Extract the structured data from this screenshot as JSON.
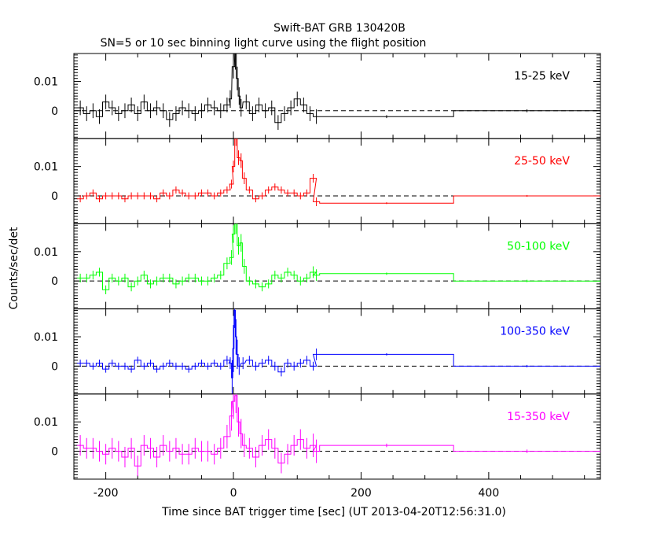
{
  "title": "Swift-BAT GRB 130420B",
  "subtitle": "SN=5 or 10 sec binning light curve using the flight position",
  "chart_data": {
    "type": "line",
    "xlabel": "Time since BAT trigger time [sec] (UT 2013-04-20T12:56:31.0)",
    "ylabel": "Counts/sec/det",
    "xlim": [
      -250,
      575
    ],
    "x_ticks": [
      -200,
      0,
      200,
      400
    ],
    "x_tick_labels": [
      "-200",
      "0",
      "200",
      "400"
    ],
    "ylim": [
      -0.0095,
      0.0195
    ],
    "y_ticks": [
      0,
      0.01
    ],
    "y_tick_labels": [
      "0",
      "0.01"
    ],
    "zero_line": "dashed",
    "panels": [
      {
        "name": "15-25 keV",
        "color": "#000000",
        "x": [
          -240,
          -230,
          -220,
          -210,
          -200,
          -190,
          -180,
          -170,
          -160,
          -150,
          -140,
          -130,
          -120,
          -110,
          -100,
          -90,
          -80,
          -70,
          -60,
          -50,
          -40,
          -30,
          -20,
          -10,
          -5,
          0,
          3,
          6,
          9,
          12,
          20,
          30,
          40,
          50,
          60,
          70,
          80,
          90,
          100,
          110,
          120,
          130,
          240,
          460
        ],
        "y": [
          0.001,
          -0.001,
          0,
          -0.002,
          0.003,
          0.001,
          -0.001,
          0,
          0.002,
          -0.001,
          0.003,
          0,
          0.001,
          0,
          -0.003,
          -0.001,
          0.001,
          0,
          -0.001,
          0,
          0.002,
          0.001,
          0,
          0.002,
          0.004,
          0.015,
          0.02,
          0.011,
          0.005,
          0.001,
          0.003,
          -0.001,
          0.002,
          0,
          0.001,
          -0.004,
          -0.001,
          0.001,
          0.004,
          0.002,
          -0.001,
          -0.002,
          -0.002,
          0
        ],
        "xerr": [
          5,
          5,
          5,
          5,
          5,
          5,
          5,
          5,
          5,
          5,
          5,
          5,
          5,
          5,
          5,
          5,
          5,
          5,
          5,
          5,
          5,
          5,
          5,
          5,
          2,
          2,
          1.5,
          1.5,
          1.5,
          2,
          5,
          5,
          5,
          5,
          5,
          5,
          5,
          5,
          5,
          5,
          5,
          5,
          105,
          115
        ],
        "yerr": [
          0.0025,
          0.0025,
          0.0025,
          0.0025,
          0.0025,
          0.0025,
          0.0025,
          0.0025,
          0.0025,
          0.0025,
          0.0025,
          0.0025,
          0.0025,
          0.0025,
          0.0025,
          0.0025,
          0.0025,
          0.0025,
          0.0025,
          0.0025,
          0.0025,
          0.0025,
          0.0025,
          0.0025,
          0.003,
          0.004,
          0.006,
          0.004,
          0.003,
          0.003,
          0.0025,
          0.0025,
          0.0025,
          0.0025,
          0.0025,
          0.0025,
          0.0025,
          0.0025,
          0.0025,
          0.0025,
          0.0025,
          0.0025,
          0.0005,
          0.0005
        ]
      },
      {
        "name": "25-50 keV",
        "color": "#ff0000",
        "x": [
          -240,
          -230,
          -220,
          -210,
          -200,
          -190,
          -180,
          -170,
          -160,
          -150,
          -140,
          -130,
          -120,
          -110,
          -100,
          -90,
          -80,
          -70,
          -60,
          -50,
          -40,
          -30,
          -20,
          -10,
          -3,
          0,
          4,
          8,
          12,
          17,
          25,
          35,
          45,
          55,
          65,
          75,
          85,
          95,
          105,
          115,
          125,
          130,
          240,
          460
        ],
        "y": [
          -0.001,
          0,
          0.001,
          -0.001,
          0,
          0,
          0,
          -0.001,
          0,
          0,
          0,
          0,
          -0.001,
          0.001,
          0,
          0.002,
          0.001,
          0,
          0,
          0.001,
          0.001,
          0,
          0.001,
          0.002,
          0.004,
          0.01,
          0.02,
          0.013,
          0.012,
          0.006,
          0.002,
          -0.001,
          0,
          0.002,
          0.003,
          0.002,
          0.001,
          0.001,
          0,
          0.001,
          0.006,
          -0.002,
          -0.0025,
          0
        ],
        "xerr": [
          5,
          5,
          5,
          5,
          5,
          5,
          5,
          5,
          5,
          5,
          5,
          5,
          5,
          5,
          5,
          5,
          5,
          5,
          5,
          5,
          5,
          5,
          5,
          5,
          3,
          2,
          2,
          2,
          2,
          3,
          5,
          5,
          5,
          5,
          5,
          5,
          5,
          5,
          5,
          5,
          5,
          5,
          105,
          115
        ],
        "yerr": [
          0.0012,
          0.0012,
          0.0012,
          0.0012,
          0.0012,
          0.0012,
          0.0012,
          0.0012,
          0.0012,
          0.0012,
          0.0012,
          0.0012,
          0.0012,
          0.0012,
          0.0012,
          0.0012,
          0.0012,
          0.0012,
          0.0012,
          0.0012,
          0.0012,
          0.0012,
          0.0012,
          0.0012,
          0.0015,
          0.002,
          0.003,
          0.0025,
          0.0025,
          0.002,
          0.0012,
          0.0012,
          0.0012,
          0.0012,
          0.0012,
          0.0012,
          0.0012,
          0.0012,
          0.0012,
          0.0012,
          0.0015,
          0.0015,
          0.0003,
          0.0003
        ]
      },
      {
        "name": "50-100 keV",
        "color": "#00ff00",
        "x": [
          -240,
          -230,
          -220,
          -210,
          -200,
          -190,
          -180,
          -170,
          -160,
          -150,
          -140,
          -130,
          -120,
          -110,
          -100,
          -90,
          -80,
          -70,
          -60,
          -50,
          -40,
          -30,
          -20,
          -10,
          -3,
          0,
          4,
          8,
          12,
          17,
          25,
          35,
          45,
          55,
          65,
          75,
          85,
          95,
          105,
          115,
          125,
          130,
          240,
          460
        ],
        "y": [
          0.001,
          0.001,
          0.002,
          0.003,
          -0.003,
          0.001,
          0,
          0.001,
          -0.002,
          0,
          0.002,
          -0.001,
          0,
          0.001,
          0.001,
          -0.001,
          0,
          0.001,
          0.001,
          0,
          0,
          0.001,
          0.002,
          0.006,
          0.008,
          0.016,
          0.02,
          0.012,
          0.013,
          0.005,
          0,
          -0.001,
          -0.002,
          -0.001,
          0.002,
          0.001,
          0.003,
          0.002,
          0,
          0.001,
          0.003,
          0.002,
          0.0025,
          0
        ],
        "xerr": [
          5,
          5,
          5,
          5,
          5,
          5,
          5,
          5,
          5,
          5,
          5,
          5,
          5,
          5,
          5,
          5,
          5,
          5,
          5,
          5,
          5,
          5,
          5,
          5,
          3,
          2,
          2,
          2,
          2,
          3,
          5,
          5,
          5,
          5,
          5,
          5,
          5,
          5,
          5,
          5,
          5,
          5,
          105,
          115
        ],
        "yerr": [
          0.0015,
          0.0015,
          0.0015,
          0.0015,
          0.0015,
          0.0015,
          0.0015,
          0.0015,
          0.0015,
          0.0015,
          0.0015,
          0.0015,
          0.0015,
          0.0015,
          0.0015,
          0.0015,
          0.0015,
          0.0015,
          0.0015,
          0.0015,
          0.0015,
          0.0015,
          0.0015,
          0.002,
          0.0025,
          0.003,
          0.004,
          0.003,
          0.003,
          0.0025,
          0.0015,
          0.0015,
          0.0015,
          0.0015,
          0.0015,
          0.0015,
          0.0015,
          0.0015,
          0.0015,
          0.0015,
          0.002,
          0.002,
          0.0004,
          0.0004
        ]
      },
      {
        "name": "100-350 keV",
        "color": "#0000ff",
        "x": [
          -240,
          -230,
          -220,
          -210,
          -200,
          -190,
          -180,
          -170,
          -160,
          -150,
          -140,
          -130,
          -120,
          -110,
          -100,
          -90,
          -80,
          -70,
          -60,
          -50,
          -40,
          -30,
          -20,
          -10,
          -5,
          -2,
          0,
          2,
          4,
          6,
          9,
          15,
          25,
          35,
          45,
          55,
          65,
          75,
          85,
          95,
          105,
          115,
          125,
          130,
          240,
          460
        ],
        "y": [
          0.001,
          0.001,
          0,
          0.001,
          -0.001,
          0.001,
          0,
          0,
          -0.001,
          0.002,
          0,
          0.001,
          -0.001,
          0,
          0.001,
          0,
          0,
          -0.001,
          0,
          0.001,
          0,
          0.001,
          0,
          0.002,
          0.001,
          -0.004,
          0.006,
          0.019,
          0.01,
          0.004,
          0,
          0.001,
          0.002,
          0,
          0.001,
          0.002,
          0,
          -0.002,
          0.001,
          0,
          0.001,
          0.002,
          0,
          0.004,
          0.004,
          0
        ],
        "xerr": [
          5,
          5,
          5,
          5,
          5,
          5,
          5,
          5,
          5,
          5,
          5,
          5,
          5,
          5,
          5,
          5,
          5,
          5,
          5,
          5,
          5,
          5,
          5,
          5,
          2,
          1,
          1,
          1,
          1,
          1.5,
          2,
          3,
          5,
          5,
          5,
          5,
          5,
          5,
          5,
          5,
          5,
          5,
          5,
          5,
          105,
          115
        ],
        "yerr": [
          0.0012,
          0.0012,
          0.0012,
          0.0012,
          0.0012,
          0.0012,
          0.0012,
          0.0012,
          0.0012,
          0.0012,
          0.0012,
          0.0012,
          0.0012,
          0.0012,
          0.0012,
          0.0012,
          0.0012,
          0.0012,
          0.0012,
          0.0012,
          0.0012,
          0.0012,
          0.0012,
          0.0015,
          0.002,
          0.006,
          0.008,
          0.006,
          0.006,
          0.005,
          0.003,
          0.002,
          0.0015,
          0.0015,
          0.0015,
          0.0015,
          0.0015,
          0.0015,
          0.0015,
          0.0015,
          0.0015,
          0.0015,
          0.0015,
          0.002,
          0.0004,
          0.0004
        ]
      },
      {
        "name": "15-350 keV",
        "color": "#ff00ff",
        "x": [
          -240,
          -230,
          -220,
          -210,
          -200,
          -190,
          -180,
          -170,
          -160,
          -150,
          -140,
          -130,
          -120,
          -110,
          -100,
          -90,
          -80,
          -70,
          -60,
          -50,
          -40,
          -30,
          -20,
          -10,
          -3,
          0,
          4,
          8,
          12,
          17,
          25,
          35,
          45,
          55,
          65,
          75,
          85,
          95,
          105,
          115,
          125,
          130,
          240,
          460
        ],
        "y": [
          0.002,
          0.001,
          0.001,
          0,
          -0.001,
          0.001,
          0,
          -0.002,
          0.001,
          -0.005,
          0.002,
          0.001,
          -0.002,
          0.002,
          0,
          0.001,
          -0.001,
          -0.001,
          0.001,
          0,
          0,
          -0.001,
          0.001,
          0.005,
          0.012,
          0.017,
          0.019,
          0.01,
          0.006,
          0.002,
          0.001,
          -0.002,
          0.002,
          0.004,
          0.001,
          -0.004,
          -0.001,
          0.002,
          0.004,
          0.001,
          0.002,
          0,
          0.002,
          0
        ],
        "xerr": [
          5,
          5,
          5,
          5,
          5,
          5,
          5,
          5,
          5,
          5,
          5,
          5,
          5,
          5,
          5,
          5,
          5,
          5,
          5,
          5,
          5,
          5,
          5,
          5,
          3,
          2,
          2,
          2,
          2,
          3,
          5,
          5,
          5,
          5,
          5,
          5,
          5,
          5,
          5,
          5,
          5,
          5,
          105,
          115
        ],
        "yerr": [
          0.0035,
          0.0035,
          0.0035,
          0.0035,
          0.0035,
          0.0035,
          0.0035,
          0.0035,
          0.0035,
          0.0035,
          0.0035,
          0.0035,
          0.0035,
          0.0035,
          0.0035,
          0.0035,
          0.0035,
          0.0035,
          0.0035,
          0.0035,
          0.0035,
          0.0035,
          0.0035,
          0.004,
          0.005,
          0.006,
          0.006,
          0.005,
          0.005,
          0.004,
          0.0035,
          0.0035,
          0.0035,
          0.0035,
          0.0035,
          0.0035,
          0.0035,
          0.0035,
          0.0035,
          0.0035,
          0.004,
          0.004,
          0.0006,
          0.0006
        ]
      }
    ]
  }
}
